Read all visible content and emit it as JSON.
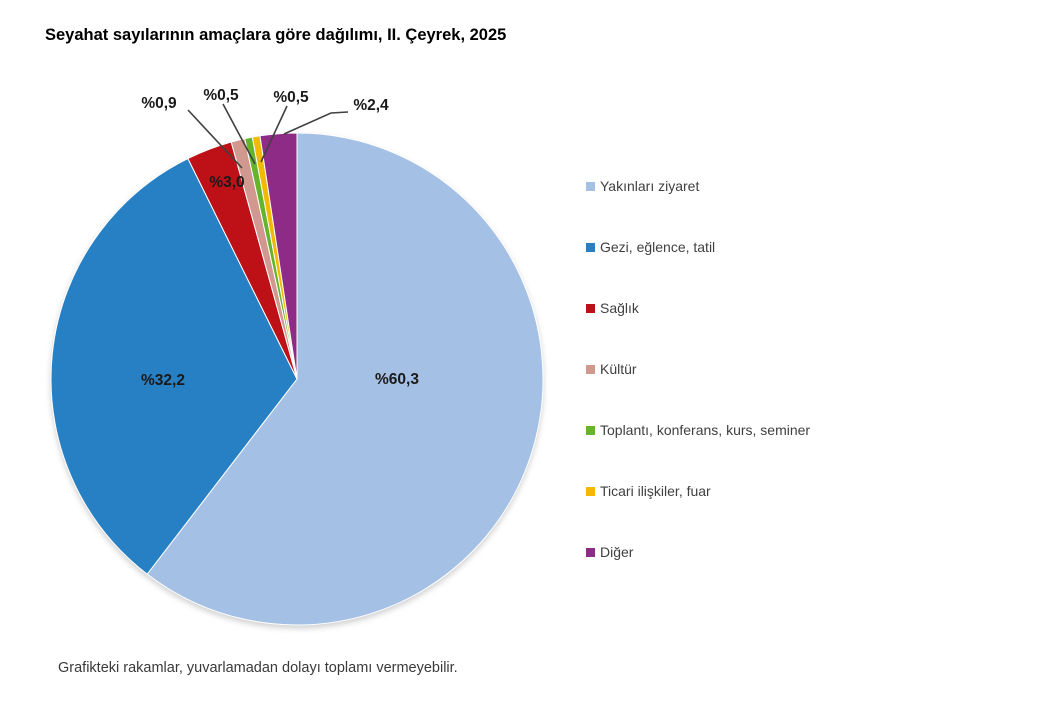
{
  "title": "Seyahat sayılarının amaçlara göre dağılımı, II. Çeyrek, 2025",
  "footnote": "Grafikteki rakamlar, yuvarlamadan dolayı toplamı vermeyebilir.",
  "chart_data": {
    "type": "pie",
    "title": "Seyahat sayılarının amaçlara göre dağılımı, II. Çeyrek, 2025",
    "labels": [
      "Yakınları ziyaret",
      "Gezi, eğlence, tatil",
      "Sağlık",
      "Kültür",
      "Toplantı, konferans, kurs, seminer",
      "Ticari ilişkiler, fuar",
      "Diğer"
    ],
    "values": [
      60.3,
      32.2,
      3.0,
      0.9,
      0.5,
      0.5,
      2.4
    ],
    "value_labels": [
      "%60,3",
      "%32,2",
      "%3,0",
      "%0,9",
      "%0,5",
      "%0,5",
      "%2,4"
    ],
    "colors": [
      "#a5c0e5",
      "#2780c4",
      "#bd1117",
      "#d1988f",
      "#66b42e",
      "#f2b903",
      "#8e2b87"
    ],
    "units": "percent",
    "start_angle_deg": 0,
    "direction": "clockwise",
    "legend_position": "right",
    "leader_line_color": "#404040",
    "label_text_color": "#1a1a1a",
    "legend_text_color": "#404040",
    "note": "Grafikteki rakamlar, yuvarlamadan dolayı toplamı vermeyebilir."
  }
}
